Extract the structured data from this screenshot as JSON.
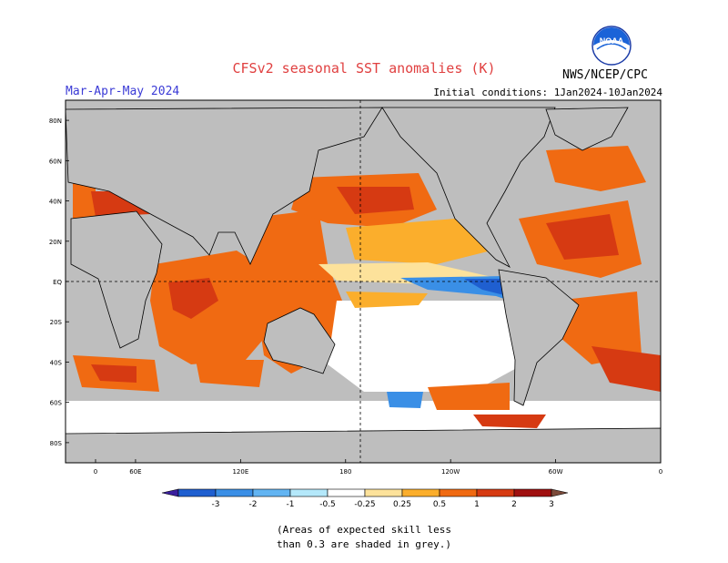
{
  "header": {
    "title": "CFSv2 seasonal SST anomalies (K)",
    "season": "Mar-Apr-May 2024",
    "initial_conditions": "Initial conditions: 1Jan2024-10Jan2024",
    "organization": "NWS/NCEP/CPC",
    "logo_text": "NOAA"
  },
  "map": {
    "projection": "equirectangular",
    "lon_range": [
      20,
      360
    ],
    "lat_range": [
      -90,
      90
    ],
    "lat_labels": [
      "80N",
      "60N",
      "40N",
      "20N",
      "EQ",
      "20S",
      "40S",
      "60S",
      "80S"
    ],
    "lon_labels": [
      "0",
      "60E",
      "120E",
      "180",
      "120W",
      "60W",
      "0"
    ],
    "land_color": "#bcbcbc",
    "reference_lines": [
      "equator",
      "dateline"
    ]
  },
  "legend": {
    "ticks": [
      "-3",
      "-2",
      "-1",
      "-0.5",
      "-0.25",
      "0.25",
      "0.5",
      "1",
      "2",
      "3"
    ],
    "colors": [
      "#3a1f9e",
      "#1f5fd0",
      "#3a8fe6",
      "#62b4f2",
      "#b4e8fa",
      "#ffffff",
      "#fde29b",
      "#fbae2c",
      "#f06a12",
      "#d63a12",
      "#a01010",
      "#7c4a3a"
    ]
  },
  "note": {
    "line1": "(Areas of expected skill less",
    "line2": "than 0.3 are shaded in grey.)"
  }
}
